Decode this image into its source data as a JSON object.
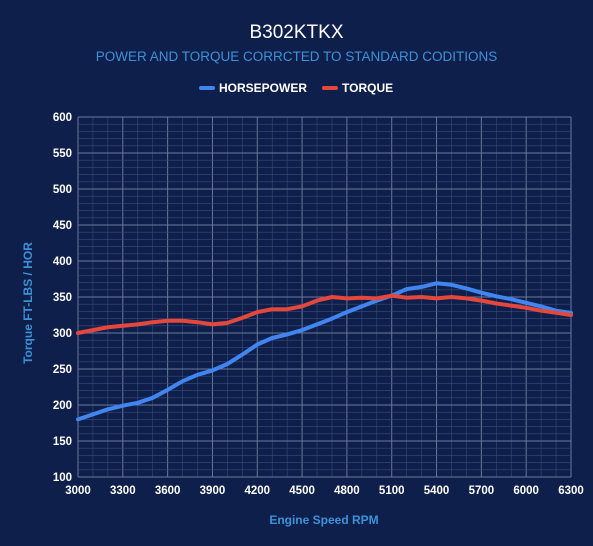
{
  "chart_data": {
    "type": "line",
    "title": "B302KTKX",
    "subtitle": "POWER AND TORQUE CORRCTED TO STANDARD CODITIONS",
    "xlabel": "Engine Speed RPM",
    "ylabel": "Torque FT-LBS / HOR",
    "xlim": [
      3000,
      6300
    ],
    "ylim": [
      100,
      600
    ],
    "xticks": [
      3000,
      3300,
      3600,
      3900,
      4200,
      4500,
      4800,
      5100,
      5400,
      5700,
      6000,
      6300
    ],
    "yticks": [
      100,
      150,
      200,
      250,
      300,
      350,
      400,
      450,
      500,
      550,
      600
    ],
    "grid": true,
    "legend_position": "top",
    "x": [
      3000,
      3100,
      3200,
      3300,
      3400,
      3500,
      3600,
      3700,
      3800,
      3900,
      4000,
      4100,
      4200,
      4300,
      4400,
      4500,
      4600,
      4700,
      4800,
      4900,
      5000,
      5100,
      5200,
      5300,
      5400,
      5500,
      5600,
      5700,
      5800,
      5900,
      6000,
      6100,
      6200,
      6300
    ],
    "series": [
      {
        "name": "HORSEPOWER",
        "color": "#4185f0",
        "values": [
          180,
          187,
          194,
          199,
          203,
          210,
          221,
          233,
          242,
          248,
          257,
          270,
          284,
          293,
          298,
          304,
          312,
          320,
          329,
          337,
          345,
          352,
          361,
          364,
          369,
          367,
          362,
          356,
          351,
          347,
          342,
          337,
          331,
          328
        ]
      },
      {
        "name": "TORQUE",
        "color": "#e4473b",
        "values": [
          300,
          304,
          308,
          310,
          312,
          315,
          317,
          317,
          315,
          312,
          314,
          321,
          329,
          333,
          333,
          337,
          345,
          350,
          348,
          349,
          348,
          352,
          349,
          350,
          348,
          350,
          348,
          345,
          341,
          338,
          335,
          331,
          328,
          325
        ]
      }
    ]
  }
}
